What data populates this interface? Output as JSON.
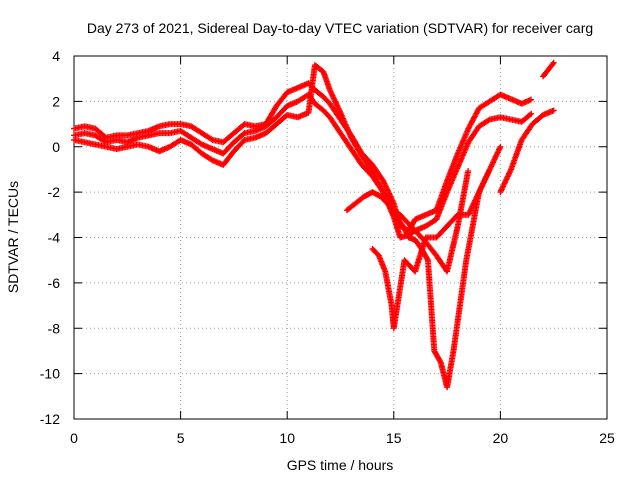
{
  "chart_data": {
    "type": "scatter",
    "title": "Day 273 of 2021, Sidereal Day-to-day VTEC variation (SDTVAR) for receiver carg",
    "xlabel": "GPS time / hours",
    "ylabel": "SDTVAR / TECUs",
    "xlim": [
      0,
      25
    ],
    "ylim": [
      -12,
      4
    ],
    "x_ticks": [
      0,
      5,
      10,
      15,
      20,
      25
    ],
    "y_ticks": [
      -12,
      -10,
      -8,
      -6,
      -4,
      -2,
      0,
      2,
      4
    ],
    "x_tick_labels": [
      "0",
      "5",
      "10",
      "15",
      "20",
      "25"
    ],
    "y_tick_labels": [
      "-12",
      "-10",
      "-8",
      "-6",
      "-4",
      "-2",
      "0",
      "2",
      "4"
    ],
    "grid": true,
    "marker": "+",
    "color": "#ff0000",
    "series": [
      {
        "x": [
          0,
          0.5,
          1,
          1.5,
          2,
          2.5,
          3,
          3.5,
          4,
          4.5,
          5,
          5.5,
          6,
          6.5,
          7,
          7.5,
          8,
          8.5,
          9,
          9.5,
          10,
          10.5,
          11,
          11.3,
          11.7,
          12,
          12.5,
          13,
          13.5,
          14,
          14.5,
          15,
          15.3,
          15.7,
          16,
          16.5,
          17,
          17.5,
          18,
          18.5,
          19,
          19.5,
          20,
          20.5,
          21,
          21.5,
          22,
          22.5
        ],
        "y": [
          0.8,
          0.9,
          0.8,
          0.4,
          0.5,
          0.5,
          0.6,
          0.7,
          0.9,
          1.0,
          1.0,
          0.9,
          0.6,
          0.3,
          0.2,
          0.6,
          1.0,
          0.9,
          1.0,
          1.8,
          2.4,
          2.6,
          2.8,
          2.5,
          2.2,
          1.9,
          1.2,
          0.5,
          -0.3,
          -0.8,
          -1.5,
          -2.5,
          -3.5,
          -3.7,
          -3.2,
          -3.0,
          -2.8,
          -1.5,
          -0.3,
          0.8,
          1.7,
          2.0,
          2.3,
          2.1,
          1.9,
          2.1,
          null,
          null
        ]
      },
      {
        "x": [
          0,
          0.5,
          1,
          1.5,
          2,
          2.5,
          3,
          3.5,
          4,
          4.5,
          5,
          5.5,
          6,
          6.5,
          7,
          7.5,
          8,
          8.5,
          9,
          9.5,
          10,
          10.5,
          11,
          11.3,
          11.7,
          12,
          12.5,
          13,
          13.5,
          14,
          14.5,
          15,
          15.3,
          15.7,
          16,
          16.5,
          17,
          17.5,
          18,
          18.5,
          19,
          19.5,
          20,
          20.5,
          21,
          21.5,
          22,
          22.5
        ],
        "y": [
          0.5,
          0.6,
          0.5,
          0.2,
          0.3,
          0.2,
          0.4,
          0.5,
          0.6,
          0.6,
          0.7,
          0.4,
          0.1,
          -0.1,
          -0.3,
          0.2,
          0.6,
          0.7,
          0.9,
          1.3,
          1.8,
          2.0,
          2.3,
          1.9,
          1.6,
          1.3,
          0.6,
          -0.1,
          -0.8,
          -1.3,
          -2.0,
          -3.1,
          -4.0,
          -3.9,
          -3.7,
          -3.5,
          -3.2,
          -2.0,
          -0.9,
          0.2,
          0.9,
          1.2,
          1.3,
          1.2,
          1.1,
          1.5,
          null,
          null
        ]
      },
      {
        "x": [
          0,
          0.5,
          1,
          1.5,
          2,
          2.5,
          3,
          3.5,
          4,
          4.5,
          5,
          5.5,
          6,
          6.5,
          7,
          7.5,
          8,
          8.5,
          9,
          9.5,
          10,
          10.5,
          11,
          11.3,
          11.7,
          12,
          12.5,
          13,
          13.5,
          14,
          14.5,
          15,
          15.3,
          15.7,
          16,
          16.5,
          17,
          17.5,
          18,
          18.5,
          19,
          19.5,
          20,
          20.5,
          21,
          21.5,
          22,
          22.5
        ],
        "y": [
          0.3,
          0.2,
          0.1,
          0.0,
          -0.1,
          0.0,
          0.1,
          0.0,
          -0.2,
          0.0,
          0.3,
          0.1,
          -0.3,
          -0.6,
          -0.8,
          -0.2,
          0.3,
          0.4,
          0.6,
          1.0,
          1.4,
          1.3,
          1.5,
          3.6,
          3.3,
          2.5,
          1.5,
          0.4,
          -0.4,
          -1.1,
          -2.0,
          -2.8,
          -3.0,
          -3.4,
          -3.7,
          -4.2,
          -4.8,
          -5.5,
          -3.5,
          -1.0,
          null,
          null,
          -2.0,
          -1.0,
          0.3,
          1.0,
          1.4,
          1.6
        ]
      },
      {
        "x": [
          12.8,
          13.2,
          13.6,
          14,
          14.4,
          14.8,
          15,
          15.2,
          15.5,
          15.7,
          16,
          16.3,
          16.6,
          16.9,
          17.2,
          17.5,
          17.8,
          18.1,
          18.4,
          18.7,
          19,
          19.5,
          20,
          20.5,
          21,
          21.5,
          22,
          22.5
        ],
        "y": [
          -2.8,
          -2.5,
          -2.2,
          -2.0,
          -2.2,
          -2.6,
          -3.0,
          -3.2,
          -3.6,
          -4.0,
          -4.1,
          -4.5,
          -5.0,
          -9.0,
          -9.5,
          -10.6,
          -9.0,
          -7.0,
          -5.0,
          -3.5,
          -2.0,
          -1.0,
          null,
          null,
          null,
          null,
          3.1,
          3.7
        ]
      },
      {
        "x": [
          14,
          14.3,
          14.6,
          14.9,
          15,
          15.5,
          16,
          16.5,
          17,
          17.5,
          18,
          18.5,
          19,
          19.5,
          20
        ],
        "y": [
          -4.5,
          -4.8,
          -5.5,
          -7.0,
          -8.0,
          -5.0,
          -5.5,
          -4.0,
          -4.0,
          -3.5,
          -3.0,
          -3.0,
          -2.0,
          -1.0,
          0.0
        ]
      }
    ]
  }
}
